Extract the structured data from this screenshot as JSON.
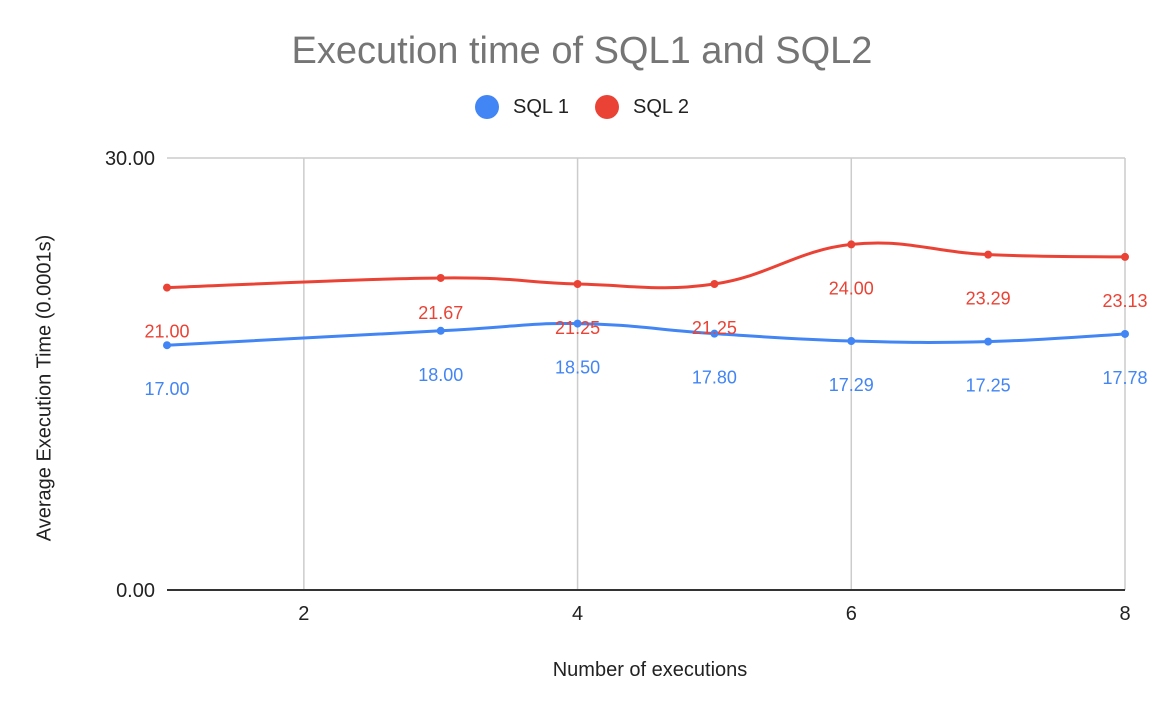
{
  "chart_data": {
    "type": "line",
    "title": "Execution time of SQL1 and SQL2",
    "xlabel": "Number of executions",
    "ylabel": "Average Execution Time (0.0001s)",
    "x": [
      1,
      3,
      4,
      5,
      6,
      7,
      8
    ],
    "xlim": [
      1,
      8
    ],
    "xticks": [
      "2",
      "4",
      "6",
      "8"
    ],
    "ylim": [
      0,
      30
    ],
    "yticks": [
      "0.00",
      "30.00"
    ],
    "grid": "vertical",
    "legend_position": "top",
    "series": [
      {
        "name": "SQL 1",
        "color": "#4285f4",
        "values": [
          17.0,
          18.0,
          18.5,
          17.8,
          17.29,
          17.25,
          17.78
        ],
        "labels": [
          "17.00",
          "18.00",
          "18.50",
          "17.80",
          "17.29",
          "17.25",
          "17.78"
        ]
      },
      {
        "name": "SQL 2",
        "color": "#ea4335",
        "values": [
          21.0,
          21.67,
          21.25,
          21.25,
          24.0,
          23.29,
          23.13
        ],
        "labels": [
          "21.00",
          "21.67",
          "21.25",
          "21.25",
          "24.00",
          "23.29",
          "23.13"
        ]
      }
    ]
  }
}
